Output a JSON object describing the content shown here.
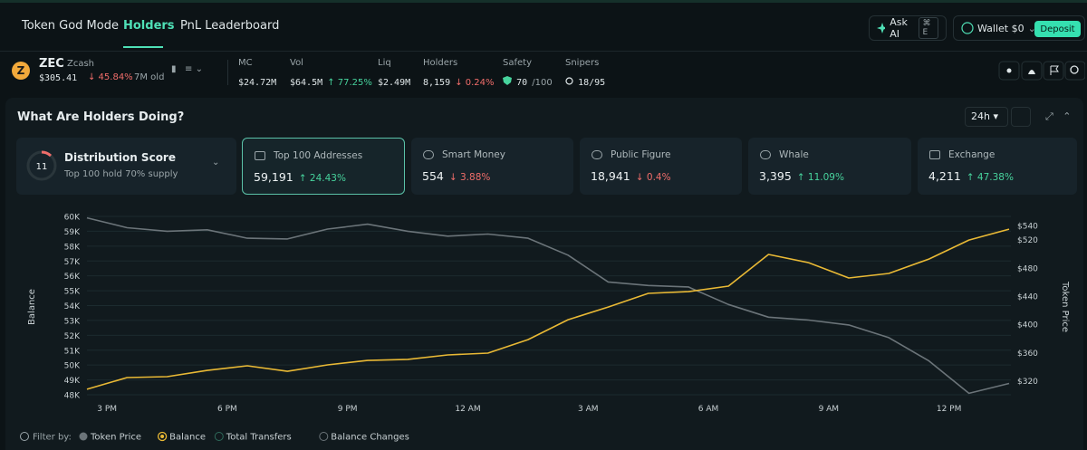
{
  "nav": {
    "tabs": [
      "Token God Mode",
      "Holders",
      "PnL Leaderboard"
    ],
    "ask_ai": "Ask AI",
    "shortcut": "⌘ E",
    "wallet": "Wallet $0",
    "deposit": "Deposit"
  },
  "token": {
    "symbol": "ZEC",
    "name": "Zcash",
    "price": "$305.41",
    "change": "↓ 45.84%",
    "age": "7M old",
    "stats": [
      {
        "label": "MC",
        "value": "$24.72M"
      },
      {
        "label": "Vol",
        "value": "$64.5M",
        "change": "↑ 77.25%"
      },
      {
        "label": "Liq",
        "value": "$2.49M"
      },
      {
        "label": "Holders",
        "value": "8,159",
        "change": "↓ 0.24%"
      },
      {
        "label": "Safety",
        "value": "70",
        "suffix": "/100"
      },
      {
        "label": "Snipers",
        "value": "18/95"
      }
    ]
  },
  "panel": {
    "title": "What Are Holders Doing?",
    "range": "24h",
    "score": {
      "value": "11",
      "title": "Distribution Score",
      "subtitle": "Top 100 hold 70% supply"
    },
    "cards": [
      {
        "title": "Top 100 Addresses",
        "value": "59,191",
        "change": "↑ 24.43%"
      },
      {
        "title": "Smart Money",
        "value": "554",
        "change": "↓ 3.88%"
      },
      {
        "title": "Public Figure",
        "value": "18,941",
        "change": "↓ 0.4%"
      },
      {
        "title": "Whale",
        "value": "3,395",
        "change": "↑ 11.09%"
      },
      {
        "title": "Exchange",
        "value": "4,211",
        "change": "↑ 47.38%"
      }
    ]
  },
  "chart_data": {
    "type": "line",
    "ylabel": "Balance",
    "y2label": "Token Price",
    "x": [
      14.5,
      15.5,
      16.5,
      17.5,
      18.5,
      19.5,
      20.5,
      21.5,
      22.5,
      23.5,
      24.5,
      25.5,
      26.5,
      27.5,
      28.5,
      29.5,
      30.5,
      31.5,
      32.5,
      33.5,
      34.5,
      35.5,
      36.5,
      37.5
    ],
    "xlim": [
      14.5,
      37.5
    ],
    "xticks": [
      {
        "value": 15,
        "label": "3 PM"
      },
      {
        "value": 18,
        "label": "6 PM"
      },
      {
        "value": 21,
        "label": "9 PM"
      },
      {
        "value": 24,
        "label": "12 AM"
      },
      {
        "value": 27,
        "label": "3 AM"
      },
      {
        "value": 30,
        "label": "6 AM"
      },
      {
        "value": 33,
        "label": "9 AM"
      },
      {
        "value": 36,
        "label": "12 PM"
      }
    ],
    "ylim": [
      48000,
      60000
    ],
    "yticks": [
      {
        "value": 48000,
        "label": "48K"
      },
      {
        "value": 49000,
        "label": "49K"
      },
      {
        "value": 50000,
        "label": "50K"
      },
      {
        "value": 51000,
        "label": "51K"
      },
      {
        "value": 52000,
        "label": "52K"
      },
      {
        "value": 53000,
        "label": "53K"
      },
      {
        "value": 54000,
        "label": "54K"
      },
      {
        "value": 55000,
        "label": "55K"
      },
      {
        "value": 56000,
        "label": "56K"
      },
      {
        "value": 57000,
        "label": "57K"
      },
      {
        "value": 58000,
        "label": "58K"
      },
      {
        "value": 59000,
        "label": "59K"
      },
      {
        "value": 60000,
        "label": "60K"
      }
    ],
    "y2lim": [
      300,
      553
    ],
    "y2ticks": [
      {
        "value": 320,
        "label": "$320"
      },
      {
        "value": 360,
        "label": "$360"
      },
      {
        "value": 400,
        "label": "$400"
      },
      {
        "value": 440,
        "label": "$440"
      },
      {
        "value": 480,
        "label": "$480"
      },
      {
        "value": 520,
        "label": "$520"
      },
      {
        "value": 540,
        "label": "$540"
      }
    ],
    "grid": true,
    "series": [
      {
        "name": "Token Price",
        "color": "#6b7479",
        "axis": "y2",
        "values": [
          551,
          537,
          532,
          534,
          522,
          521,
          535,
          542,
          532,
          525,
          528,
          522,
          498,
          460,
          455,
          453,
          428,
          410,
          406,
          399,
          381,
          348,
          302,
          316
        ]
      },
      {
        "name": "Balance",
        "color": "#e9b935",
        "axis": "y",
        "values": [
          48370,
          49160,
          49220,
          49640,
          49950,
          49580,
          50010,
          50310,
          50380,
          50680,
          50800,
          51710,
          53050,
          53900,
          54820,
          54940,
          55310,
          57440,
          56890,
          55860,
          56160,
          57130,
          58410,
          59140
        ]
      }
    ],
    "filter_label": "Filter by:",
    "filter_options": [
      "Total Transfers",
      "Balance Changes"
    ]
  }
}
